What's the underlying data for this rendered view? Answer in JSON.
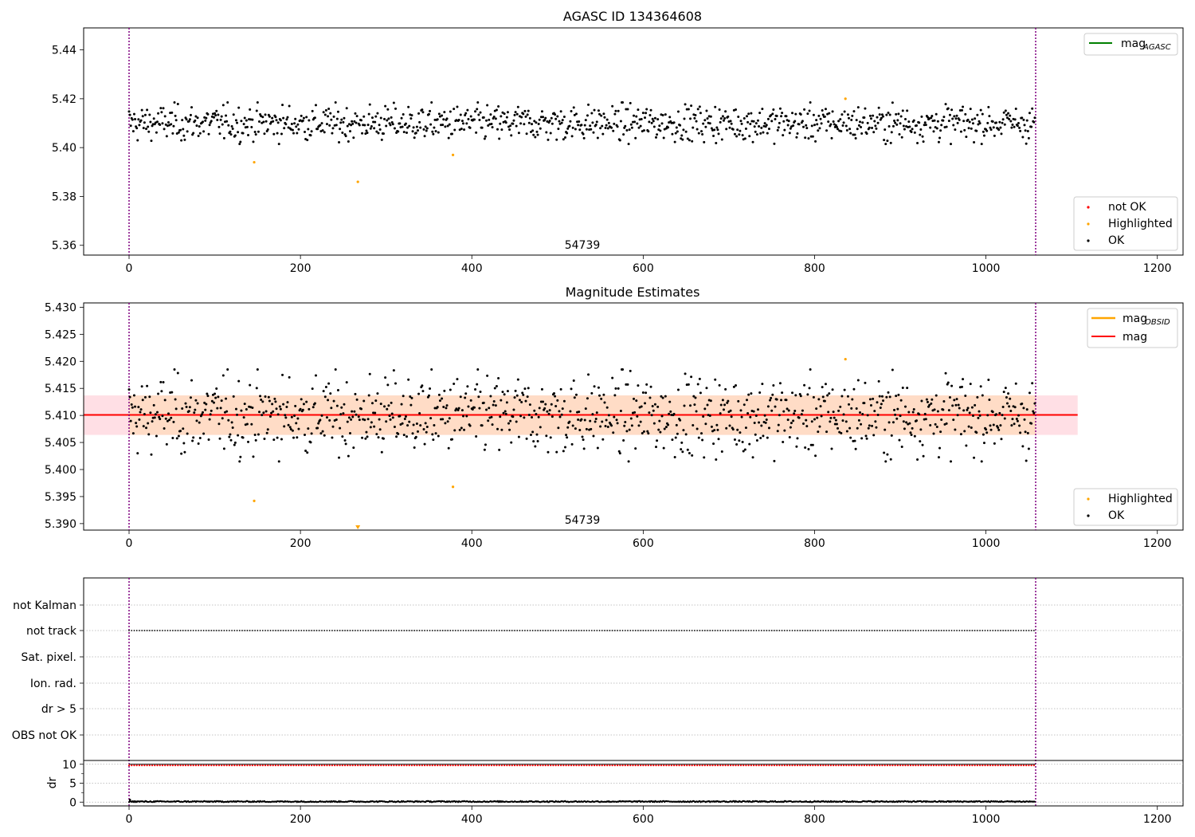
{
  "figure": {
    "panel1_title": "AGASC ID 134364608",
    "panel2_title": "Magnitude Estimates",
    "obsid_label": "54739"
  },
  "colors": {
    "ok": "#000000",
    "highlighted": "#ffa500",
    "not_ok": "#ff0000",
    "mag_agasc": "#008000",
    "mag": "#ff0000",
    "mag_obsid": "#ffa500",
    "obsid_line": "#800080",
    "band_obsid": "#ffdab9",
    "band_mag": "#ffc0cb",
    "grid": "#b0b0b0"
  },
  "chart_data": [
    {
      "type": "scatter",
      "title": "AGASC ID 134364608",
      "xlim": [
        -53,
        1230
      ],
      "ylim": [
        5.356,
        5.449
      ],
      "xticks": [
        0,
        200,
        400,
        600,
        800,
        1000,
        1200
      ],
      "yticks": [
        "5.36",
        "5.38",
        "5.40",
        "5.42",
        "5.44"
      ],
      "annotation": "54739",
      "obsid_bounds": [
        0,
        1058
      ],
      "n_points": 1058,
      "ok_baseline": 5.41,
      "ok_scatter": 0.0036,
      "series": [
        {
          "name": "not OK",
          "points": []
        },
        {
          "name": "Highlighted",
          "points": [
            [
              146,
              5.394
            ],
            [
              267,
              5.386
            ],
            [
              378,
              5.397
            ],
            [
              836,
              5.42
            ]
          ]
        },
        {
          "name": "OK",
          "points": "index 0–1057, mag ≈ 5.41 ± 0.004"
        }
      ],
      "lines": [
        {
          "name": "mag",
          "subscript": "AGASC",
          "y": null
        }
      ],
      "legend_lines": [
        "mag",
        "AGASC"
      ],
      "legend_points": [
        "not OK",
        "Highlighted",
        "OK"
      ]
    },
    {
      "type": "scatter",
      "title": "Magnitude Estimates",
      "xlim": [
        -53,
        1230
      ],
      "ylim": [
        5.3888,
        5.4308
      ],
      "xticks": [
        0,
        200,
        400,
        600,
        800,
        1000,
        1200
      ],
      "yticks": [
        "5.390",
        "5.395",
        "5.400",
        "5.405",
        "5.410",
        "5.415",
        "5.420",
        "5.425",
        "5.430"
      ],
      "annotation": "54739",
      "obsid_bounds": [
        0,
        1058
      ],
      "mag": 5.4101,
      "mag_band": [
        5.4064,
        5.4137
      ],
      "mag_band_xrange": [
        -53,
        1107
      ],
      "mag_obsid": 5.4101,
      "mag_obsid_band": [
        5.4064,
        5.4137
      ],
      "series": [
        {
          "name": "Highlighted",
          "points": [
            [
              146,
              5.3942
            ],
            [
              378,
              5.3968
            ],
            [
              836,
              5.4204
            ]
          ],
          "below_axis": [
            [
              267,
              5.3865
            ]
          ]
        },
        {
          "name": "OK",
          "points": "same as panel 1"
        }
      ],
      "legend_lines": [
        "mag",
        "OBSID",
        "mag"
      ],
      "legend_points": [
        "Highlighted",
        "OK"
      ]
    },
    {
      "type": "scatter",
      "title": "",
      "xlim": [
        -53,
        1230
      ],
      "xticks": [
        0,
        200,
        400,
        600,
        800,
        1000,
        1200
      ],
      "category_labels": [
        "not Kalman",
        "not track",
        "Sat. pixel.",
        "Ion. rad.",
        "dr > 5",
        "OBS not OK"
      ],
      "active_flags": [
        "not track"
      ],
      "dr_panel": {
        "ylabel": "dr",
        "yticks": [
          "0",
          "5",
          "10"
        ],
        "ylim": [
          -1,
          11
        ],
        "threshold_line": 10,
        "near_threshold": 9.7,
        "typical_dr": 0.15
      }
    }
  ]
}
